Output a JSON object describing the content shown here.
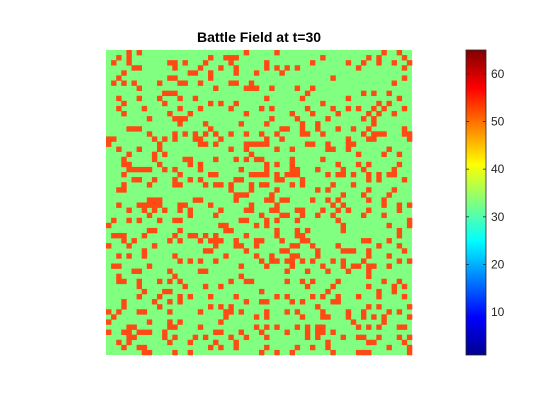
{
  "chart_data": {
    "type": "heatmap",
    "title": "Battle Field at t=30",
    "grid_rows": 60,
    "grid_cols": 60,
    "colormap": "jet",
    "clim": [
      1,
      65
    ],
    "colorbar": {
      "location": "right",
      "ticks": [
        10,
        20,
        30,
        40,
        50,
        60
      ],
      "tick_labels": [
        "10",
        "20",
        "30",
        "40",
        "50",
        "60"
      ]
    },
    "cell_values": {
      "background": 33,
      "marked": 58,
      "background_color": "#80ff80",
      "marked_color": "#ff4a14"
    },
    "marked_fraction": 0.2
  }
}
